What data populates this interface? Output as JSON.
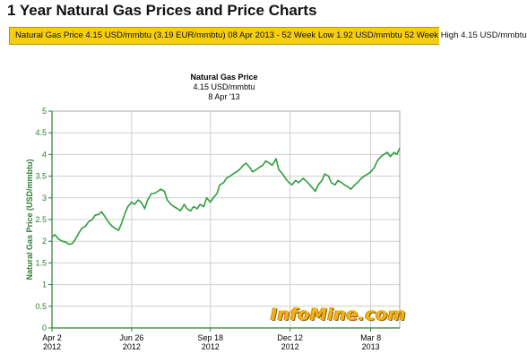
{
  "header": {
    "title": "1 Year Natural Gas Prices and Price Charts",
    "ticker": "Natural Gas Price 4.15 USD/mmbtu (3.19 EUR/mmbtu) 08 Apr 2013 - 52 Week Low 1.92 USD/mmbtu 52 Week High 4.15 USD/mmbtu"
  },
  "chart_data": {
    "type": "line",
    "title": "Natural Gas Price",
    "subtitle_price": "4.15 USD/mmbtu",
    "subtitle_date": "8 Apr '13",
    "ylabel": "Natural Gas Price (USD/mmbtu)",
    "xlabel": "",
    "ylim": [
      0,
      5
    ],
    "y_ticks": [
      "0",
      "0.5",
      "1",
      "1.5",
      "2",
      "2.5",
      "3",
      "3.5",
      "4",
      "4.5",
      "5"
    ],
    "x_ticks": [
      {
        "date": "2012-04-02",
        "line1": "Apr 2",
        "line2": "2012"
      },
      {
        "date": "2012-06-26",
        "line1": "Jun 26",
        "line2": "2012"
      },
      {
        "date": "2012-09-18",
        "line1": "Sep 18",
        "line2": "2012"
      },
      {
        "date": "2012-12-12",
        "line1": "Dec 12",
        "line2": "2012"
      },
      {
        "date": "2013-03-08",
        "line1": "Mar 8",
        "line2": "2013"
      }
    ],
    "x_range": [
      "2012-04-02",
      "2013-04-08"
    ],
    "grid": true,
    "line_color": "#2e9e3e",
    "series": [
      {
        "points": [
          [
            "2012-04-02",
            2.1
          ],
          [
            "2012-04-05",
            2.15
          ],
          [
            "2012-04-09",
            2.05
          ],
          [
            "2012-04-13",
            2.0
          ],
          [
            "2012-04-17",
            1.98
          ],
          [
            "2012-04-20",
            1.93
          ],
          [
            "2012-04-24",
            1.95
          ],
          [
            "2012-04-27",
            2.05
          ],
          [
            "2012-05-01",
            2.2
          ],
          [
            "2012-05-04",
            2.3
          ],
          [
            "2012-05-08",
            2.35
          ],
          [
            "2012-05-11",
            2.45
          ],
          [
            "2012-05-15",
            2.5
          ],
          [
            "2012-05-18",
            2.6
          ],
          [
            "2012-05-22",
            2.62
          ],
          [
            "2012-05-25",
            2.68
          ],
          [
            "2012-05-29",
            2.55
          ],
          [
            "2012-06-01",
            2.45
          ],
          [
            "2012-06-05",
            2.35
          ],
          [
            "2012-06-08",
            2.3
          ],
          [
            "2012-06-12",
            2.25
          ],
          [
            "2012-06-15",
            2.4
          ],
          [
            "2012-06-19",
            2.65
          ],
          [
            "2012-06-22",
            2.8
          ],
          [
            "2012-06-26",
            2.9
          ],
          [
            "2012-06-29",
            2.85
          ],
          [
            "2012-07-03",
            2.95
          ],
          [
            "2012-07-06",
            2.9
          ],
          [
            "2012-07-10",
            2.75
          ],
          [
            "2012-07-13",
            2.95
          ],
          [
            "2012-07-17",
            3.1
          ],
          [
            "2012-07-20",
            3.1
          ],
          [
            "2012-07-24",
            3.15
          ],
          [
            "2012-07-27",
            3.2
          ],
          [
            "2012-07-31",
            3.15
          ],
          [
            "2012-08-03",
            2.95
          ],
          [
            "2012-08-07",
            2.85
          ],
          [
            "2012-08-10",
            2.8
          ],
          [
            "2012-08-14",
            2.75
          ],
          [
            "2012-08-17",
            2.7
          ],
          [
            "2012-08-21",
            2.85
          ],
          [
            "2012-08-24",
            2.75
          ],
          [
            "2012-08-28",
            2.7
          ],
          [
            "2012-08-31",
            2.8
          ],
          [
            "2012-09-04",
            2.75
          ],
          [
            "2012-09-07",
            2.85
          ],
          [
            "2012-09-11",
            2.8
          ],
          [
            "2012-09-14",
            3.0
          ],
          [
            "2012-09-18",
            2.9
          ],
          [
            "2012-09-21",
            3.0
          ],
          [
            "2012-09-25",
            3.1
          ],
          [
            "2012-09-28",
            3.3
          ],
          [
            "2012-10-02",
            3.35
          ],
          [
            "2012-10-05",
            3.45
          ],
          [
            "2012-10-09",
            3.5
          ],
          [
            "2012-10-12",
            3.55
          ],
          [
            "2012-10-16",
            3.6
          ],
          [
            "2012-10-19",
            3.65
          ],
          [
            "2012-10-23",
            3.75
          ],
          [
            "2012-10-26",
            3.8
          ],
          [
            "2012-10-30",
            3.7
          ],
          [
            "2012-11-02",
            3.6
          ],
          [
            "2012-11-06",
            3.65
          ],
          [
            "2012-11-09",
            3.7
          ],
          [
            "2012-11-13",
            3.75
          ],
          [
            "2012-11-16",
            3.85
          ],
          [
            "2012-11-20",
            3.8
          ],
          [
            "2012-11-23",
            3.75
          ],
          [
            "2012-11-27",
            3.9
          ],
          [
            "2012-11-30",
            3.65
          ],
          [
            "2012-12-04",
            3.55
          ],
          [
            "2012-12-07",
            3.45
          ],
          [
            "2012-12-11",
            3.35
          ],
          [
            "2012-12-14",
            3.3
          ],
          [
            "2012-12-18",
            3.4
          ],
          [
            "2012-12-21",
            3.35
          ],
          [
            "2012-12-26",
            3.45
          ],
          [
            "2012-12-31",
            3.35
          ],
          [
            "2013-01-04",
            3.25
          ],
          [
            "2013-01-08",
            3.15
          ],
          [
            "2013-01-11",
            3.3
          ],
          [
            "2013-01-15",
            3.4
          ],
          [
            "2013-01-18",
            3.55
          ],
          [
            "2013-01-22",
            3.5
          ],
          [
            "2013-01-25",
            3.35
          ],
          [
            "2013-01-29",
            3.3
          ],
          [
            "2013-02-01",
            3.4
          ],
          [
            "2013-02-05",
            3.35
          ],
          [
            "2013-02-08",
            3.3
          ],
          [
            "2013-02-12",
            3.25
          ],
          [
            "2013-02-15",
            3.2
          ],
          [
            "2013-02-19",
            3.3
          ],
          [
            "2013-02-22",
            3.35
          ],
          [
            "2013-02-26",
            3.45
          ],
          [
            "2013-03-01",
            3.5
          ],
          [
            "2013-03-05",
            3.55
          ],
          [
            "2013-03-08",
            3.6
          ],
          [
            "2013-03-12",
            3.7
          ],
          [
            "2013-03-15",
            3.85
          ],
          [
            "2013-03-19",
            3.95
          ],
          [
            "2013-03-22",
            4.0
          ],
          [
            "2013-03-26",
            4.05
          ],
          [
            "2013-03-29",
            3.95
          ],
          [
            "2013-04-02",
            4.05
          ],
          [
            "2013-04-05",
            4.0
          ],
          [
            "2013-04-08",
            4.15
          ]
        ]
      }
    ]
  },
  "watermark": "InfoMine.com",
  "colors": {
    "ticker_bg": "#f6cd10",
    "axis": "#2e7d32",
    "grid": "#cfcfcf",
    "line": "#2e9e3e",
    "watermark": "#f2b318"
  }
}
